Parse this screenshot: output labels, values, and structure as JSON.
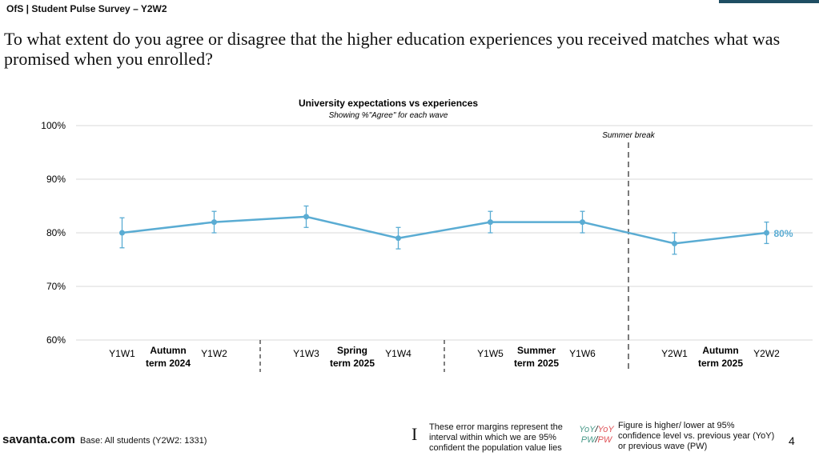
{
  "header": "OfS | Student Pulse Survey – Y2W2",
  "question": "To what extent do you agree or disagree that the higher education experiences you received matches what was promised when you enrolled?",
  "chart_data": {
    "type": "line",
    "title": "University expectations vs experiences",
    "subtitle": "Showing %\"Agree\" for each wave",
    "categories": [
      "Y1W1",
      "Y1W2",
      "Y1W3",
      "Y1W4",
      "Y1W5",
      "Y1W6",
      "Y2W1",
      "Y2W2"
    ],
    "values": [
      80,
      82,
      83,
      79,
      82,
      82,
      78,
      80
    ],
    "ci_low": [
      77.2,
      80,
      81,
      77,
      80,
      80,
      76,
      78
    ],
    "ci_high": [
      82.8,
      84,
      85,
      81,
      84,
      84,
      80,
      82
    ],
    "ylim": [
      60,
      100
    ],
    "yticks": [
      "60%",
      "70%",
      "80%",
      "90%",
      "100%"
    ],
    "grid": true,
    "color": "#5aacd3",
    "last_label": "80%",
    "groups": [
      "Autumn term 2024",
      "Spring term 2025",
      "Summer term 2025",
      "Autumn term 2025"
    ],
    "annotation": "Summer break"
  },
  "footer": {
    "brand": "savanta.com",
    "base": "Base: All students (Y2W2: 1331)",
    "error_note": "These error margins represent the interval within which we are 95% confident the population value lies",
    "sig_yoy_high": "YoY",
    "sig_yoy_low": "YoY",
    "sig_pw_high": "PW",
    "sig_pw_low": "PW",
    "sig_note": "Figure is higher/ lower at 95% confidence level vs. previous year (YoY) or previous wave (PW)",
    "page": "4",
    "colors": {
      "higher": "#4a9a8a",
      "lower": "#e0555a"
    }
  }
}
